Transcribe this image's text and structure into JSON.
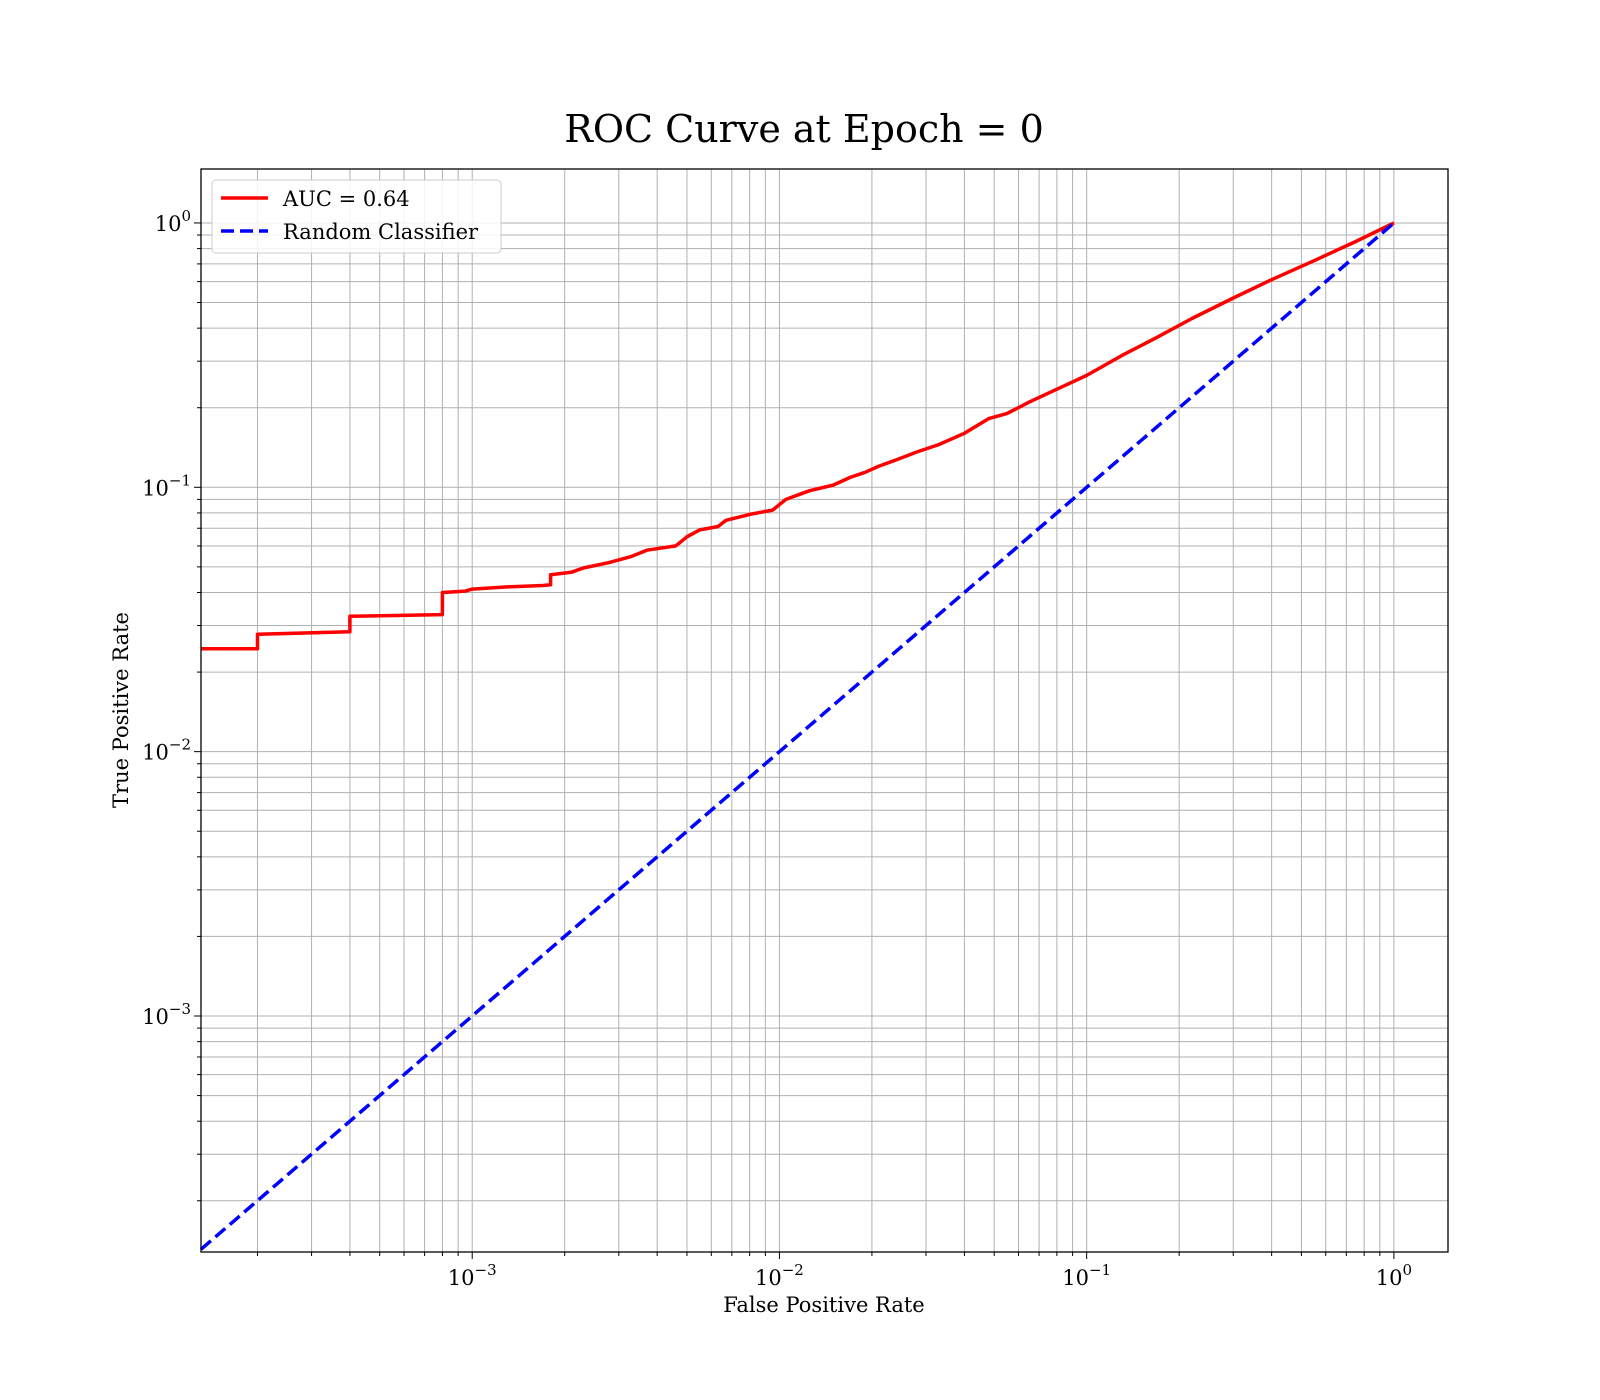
{
  "chart_data": {
    "type": "line",
    "title": "ROC Curve at Epoch = 0",
    "xlabel": "False Positive Rate",
    "ylabel": "True Positive Rate",
    "xscale": "log",
    "yscale": "log",
    "xlim": [
      0.000131,
      1.5
    ],
    "ylim": [
      0.000128,
      1.6
    ],
    "grid": "on (major and minor)",
    "legend_position": "upper left",
    "xticks": [
      {
        "value": 0.001,
        "base": "10",
        "exp": "−3"
      },
      {
        "value": 0.01,
        "base": "10",
        "exp": "−2"
      },
      {
        "value": 0.1,
        "base": "10",
        "exp": "−1"
      },
      {
        "value": 1,
        "base": "10",
        "exp": "0"
      }
    ],
    "yticks": [
      {
        "value": 0.001,
        "base": "10",
        "exp": "−3"
      },
      {
        "value": 0.01,
        "base": "10",
        "exp": "−2"
      },
      {
        "value": 0.1,
        "base": "10",
        "exp": "−1"
      },
      {
        "value": 1,
        "base": "10",
        "exp": "0"
      }
    ],
    "series": [
      {
        "name": "AUC = 0.64",
        "color": "#ff0000",
        "style": "solid",
        "points": [
          [
            0.000131,
            0.0245
          ],
          [
            0.0002,
            0.0245
          ],
          [
            0.0002,
            0.0278
          ],
          [
            0.0004,
            0.0284
          ],
          [
            0.0004,
            0.0325
          ],
          [
            0.0008,
            0.033
          ],
          [
            0.0008,
            0.04
          ],
          [
            0.00095,
            0.0405
          ],
          [
            0.001,
            0.0412
          ],
          [
            0.0013,
            0.042
          ],
          [
            0.0017,
            0.0425
          ],
          [
            0.0018,
            0.0428
          ],
          [
            0.0018,
            0.0467
          ],
          [
            0.0021,
            0.0477
          ],
          [
            0.0023,
            0.0495
          ],
          [
            0.0028,
            0.052
          ],
          [
            0.0033,
            0.0548
          ],
          [
            0.0037,
            0.0578
          ],
          [
            0.0046,
            0.06
          ],
          [
            0.005,
            0.065
          ],
          [
            0.0055,
            0.069
          ],
          [
            0.0063,
            0.071
          ],
          [
            0.0067,
            0.075
          ],
          [
            0.008,
            0.079
          ],
          [
            0.0095,
            0.082
          ],
          [
            0.0105,
            0.09
          ],
          [
            0.0125,
            0.097
          ],
          [
            0.015,
            0.102
          ],
          [
            0.017,
            0.109
          ],
          [
            0.019,
            0.114
          ],
          [
            0.021,
            0.12
          ],
          [
            0.024,
            0.127
          ],
          [
            0.028,
            0.136
          ],
          [
            0.033,
            0.145
          ],
          [
            0.04,
            0.16
          ],
          [
            0.048,
            0.182
          ],
          [
            0.055,
            0.19
          ],
          [
            0.065,
            0.21
          ],
          [
            0.08,
            0.235
          ],
          [
            0.1,
            0.265
          ],
          [
            0.13,
            0.315
          ],
          [
            0.17,
            0.37
          ],
          [
            0.22,
            0.435
          ],
          [
            0.3,
            0.52
          ],
          [
            0.4,
            0.61
          ],
          [
            0.55,
            0.72
          ],
          [
            0.75,
            0.85
          ],
          [
            1.0,
            1.0
          ]
        ]
      },
      {
        "name": "Random Classifier",
        "color": "#0000ff",
        "style": "dashed",
        "points": [
          [
            0.000131,
            0.000131
          ],
          [
            1.0,
            1.0
          ]
        ]
      }
    ]
  }
}
